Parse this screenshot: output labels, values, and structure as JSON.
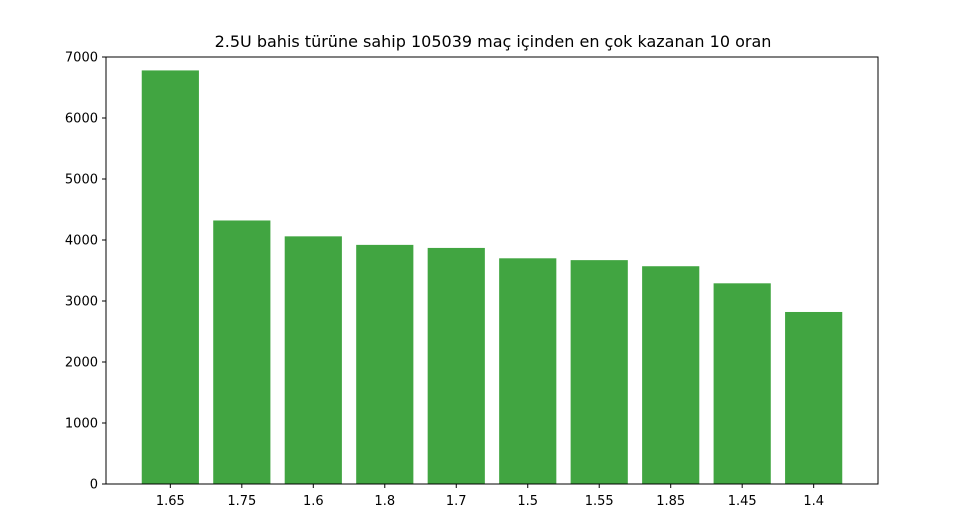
{
  "chart_data": {
    "type": "bar",
    "title": "2.5U bahis türüne sahip 105039 maç içinden en çok kazanan 10 oran",
    "xlabel": "",
    "ylabel": "",
    "categories": [
      "1.65",
      "1.75",
      "1.6",
      "1.8",
      "1.7",
      "1.5",
      "1.55",
      "1.85",
      "1.45",
      "1.4"
    ],
    "values": [
      6780,
      4320,
      4060,
      3920,
      3870,
      3700,
      3670,
      3570,
      3290,
      2820
    ],
    "ylim": [
      0,
      7000
    ],
    "yticks": [
      0,
      1000,
      2000,
      3000,
      4000,
      5000,
      6000,
      7000
    ],
    "bar_color": "#41a541",
    "grid": false,
    "legend": "none"
  }
}
